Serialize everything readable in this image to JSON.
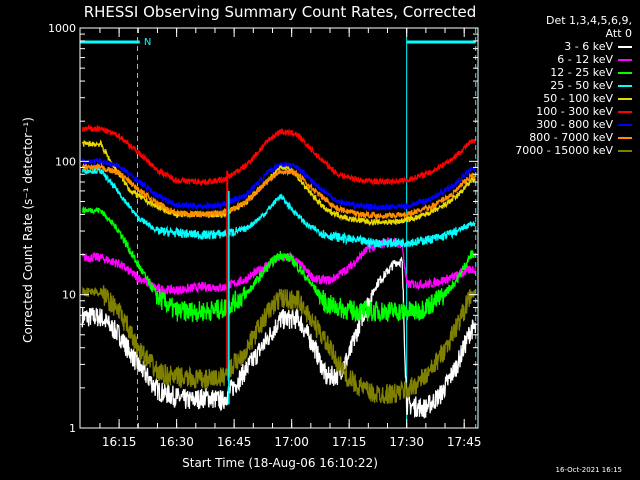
{
  "chart_data": {
    "type": "line",
    "title": "RHESSI Observing Summary Count Rates, Corrected",
    "xlabel": "Start Time (18-Aug-06 16:10:22)",
    "ylabel": "Corrected Count Rate (s⁻¹ detector⁻¹)",
    "yscale": "log",
    "ylim": [
      1,
      1000
    ],
    "xlim_minutes": [
      16.08,
      17.81
    ],
    "x_ticks": [
      "16:15",
      "16:30",
      "16:45",
      "17:00",
      "17:15",
      "17:30",
      "17:45"
    ],
    "y_ticks": [
      "1",
      "10",
      "100",
      "1000"
    ],
    "legend": {
      "header": [
        "Det 1,3,4,5,6,9,",
        "Att 0"
      ],
      "placement": "right"
    },
    "markers": {
      "n_label": "N"
    },
    "series": [
      {
        "name": "3 - 6 keV",
        "color": "#ffffff",
        "points": [
          [
            16.17,
            6.8
          ],
          [
            16.25,
            5.0
          ],
          [
            16.33,
            3.0
          ],
          [
            16.42,
            1.9
          ],
          [
            16.5,
            1.7
          ],
          [
            16.55,
            1.6
          ],
          [
            16.63,
            1.7
          ],
          [
            16.7,
            1.6
          ],
          [
            16.8,
            2.7
          ],
          [
            16.9,
            4.8
          ],
          [
            16.95,
            6.5
          ],
          [
            17.03,
            6.6
          ],
          [
            17.1,
            4.0
          ],
          [
            17.15,
            2.4
          ],
          [
            17.2,
            2.5
          ],
          [
            17.25,
            3.5
          ],
          [
            17.3,
            6.5
          ],
          [
            17.37,
            12
          ],
          [
            17.45,
            17.5
          ],
          [
            17.48,
            17.8
          ],
          [
            17.5,
            1.5
          ],
          [
            17.58,
            1.4
          ],
          [
            17.65,
            1.8
          ],
          [
            17.72,
            3.0
          ],
          [
            17.78,
            5.5
          ]
        ]
      },
      {
        "name": "6 - 12 keV",
        "color": "#ff00ff",
        "points": [
          [
            16.17,
            19
          ],
          [
            16.25,
            17
          ],
          [
            16.33,
            13.5
          ],
          [
            16.42,
            11
          ],
          [
            16.5,
            10.8
          ],
          [
            16.62,
            11.5
          ],
          [
            16.7,
            11.3
          ],
          [
            16.8,
            13
          ],
          [
            16.9,
            17
          ],
          [
            16.95,
            19
          ],
          [
            17.0,
            19
          ],
          [
            17.05,
            16
          ],
          [
            17.1,
            13
          ],
          [
            17.17,
            12.8
          ],
          [
            17.25,
            16
          ],
          [
            17.33,
            22
          ],
          [
            17.42,
            25
          ],
          [
            17.48,
            24
          ],
          [
            17.5,
            12
          ],
          [
            17.6,
            12
          ],
          [
            17.7,
            13.5
          ],
          [
            17.78,
            15.5
          ]
        ]
      },
      {
        "name": "12 - 25 keV",
        "color": "#00ff00",
        "points": [
          [
            16.17,
            43
          ],
          [
            16.25,
            30
          ],
          [
            16.33,
            17
          ],
          [
            16.42,
            9.5
          ],
          [
            16.5,
            7.5
          ],
          [
            16.62,
            7.5
          ],
          [
            16.7,
            7.8
          ],
          [
            16.8,
            10
          ],
          [
            16.9,
            16.5
          ],
          [
            16.95,
            20
          ],
          [
            17.0,
            18.5
          ],
          [
            17.07,
            13
          ],
          [
            17.15,
            8.5
          ],
          [
            17.25,
            7.6
          ],
          [
            17.35,
            7.5
          ],
          [
            17.45,
            7.5
          ],
          [
            17.55,
            7.5
          ],
          [
            17.65,
            9.5
          ],
          [
            17.72,
            13
          ],
          [
            17.78,
            20
          ]
        ]
      },
      {
        "name": "25 - 50 keV",
        "color": "#00ffff",
        "points": [
          [
            16.17,
            85
          ],
          [
            16.25,
            58
          ],
          [
            16.33,
            38
          ],
          [
            16.42,
            30
          ],
          [
            16.5,
            29
          ],
          [
            16.62,
            28
          ],
          [
            16.7,
            28.5
          ],
          [
            16.8,
            31
          ],
          [
            16.88,
            40
          ],
          [
            16.95,
            55
          ],
          [
            17.0,
            44
          ],
          [
            17.07,
            33
          ],
          [
            17.15,
            28
          ],
          [
            17.25,
            26
          ],
          [
            17.35,
            24.5
          ],
          [
            17.45,
            24.5
          ],
          [
            17.55,
            25
          ],
          [
            17.65,
            27
          ],
          [
            17.72,
            30
          ],
          [
            17.78,
            34
          ]
        ]
      },
      {
        "name": "50 - 100 keV",
        "color": "#e8d800",
        "points": [
          [
            16.17,
            135
          ],
          [
            16.22,
            95
          ],
          [
            16.3,
            60
          ],
          [
            16.4,
            47
          ],
          [
            16.5,
            40
          ],
          [
            16.62,
            40
          ],
          [
            16.7,
            40
          ],
          [
            16.8,
            49
          ],
          [
            16.9,
            73
          ],
          [
            16.95,
            92
          ],
          [
            17.0,
            87
          ],
          [
            17.07,
            61
          ],
          [
            17.15,
            43
          ],
          [
            17.25,
            37
          ],
          [
            17.35,
            35
          ],
          [
            17.45,
            35
          ],
          [
            17.55,
            38
          ],
          [
            17.65,
            45
          ],
          [
            17.72,
            55
          ],
          [
            17.78,
            72
          ]
        ]
      },
      {
        "name": "100 - 300 keV",
        "color": "#ff0000",
        "points": [
          [
            16.17,
            175
          ],
          [
            16.25,
            155
          ],
          [
            16.33,
            118
          ],
          [
            16.42,
            85
          ],
          [
            16.5,
            72
          ],
          [
            16.62,
            70
          ],
          [
            16.7,
            72
          ],
          [
            16.8,
            92
          ],
          [
            16.9,
            145
          ],
          [
            16.95,
            168
          ],
          [
            17.02,
            160
          ],
          [
            17.1,
            115
          ],
          [
            17.2,
            80
          ],
          [
            17.3,
            72
          ],
          [
            17.4,
            70
          ],
          [
            17.5,
            72
          ],
          [
            17.6,
            82
          ],
          [
            17.7,
            105
          ],
          [
            17.78,
            140
          ]
        ]
      },
      {
        "name": "300 - 800 keV",
        "color": "#0000ff",
        "points": [
          [
            16.17,
            100
          ],
          [
            16.25,
            92
          ],
          [
            16.33,
            72
          ],
          [
            16.42,
            55
          ],
          [
            16.5,
            47
          ],
          [
            16.62,
            46
          ],
          [
            16.7,
            47
          ],
          [
            16.8,
            56
          ],
          [
            16.9,
            83
          ],
          [
            16.95,
            96
          ],
          [
            17.02,
            92
          ],
          [
            17.1,
            68
          ],
          [
            17.2,
            50
          ],
          [
            17.3,
            46
          ],
          [
            17.4,
            45
          ],
          [
            17.5,
            46
          ],
          [
            17.6,
            52
          ],
          [
            17.7,
            65
          ],
          [
            17.78,
            87
          ]
        ]
      },
      {
        "name": "800 - 7000 keV",
        "color": "#ff8c00",
        "points": [
          [
            16.17,
            90
          ],
          [
            16.25,
            82
          ],
          [
            16.33,
            62
          ],
          [
            16.42,
            48
          ],
          [
            16.5,
            41
          ],
          [
            16.62,
            40
          ],
          [
            16.7,
            41
          ],
          [
            16.8,
            49
          ],
          [
            16.9,
            73
          ],
          [
            16.95,
            85
          ],
          [
            17.02,
            82
          ],
          [
            17.1,
            60
          ],
          [
            17.2,
            44
          ],
          [
            17.3,
            40
          ],
          [
            17.4,
            39
          ],
          [
            17.5,
            40
          ],
          [
            17.6,
            45
          ],
          [
            17.7,
            57
          ],
          [
            17.78,
            78
          ]
        ]
      },
      {
        "name": "7000 - 15000 keV",
        "color": "#7f7f00",
        "points": [
          [
            16.17,
            10.5
          ],
          [
            16.25,
            7.5
          ],
          [
            16.33,
            4.0
          ],
          [
            16.42,
            2.6
          ],
          [
            16.5,
            2.4
          ],
          [
            16.62,
            2.3
          ],
          [
            16.7,
            2.4
          ],
          [
            16.8,
            3.8
          ],
          [
            16.9,
            7.5
          ],
          [
            16.95,
            9.5
          ],
          [
            17.03,
            9.0
          ],
          [
            17.1,
            6.0
          ],
          [
            17.17,
            3.8
          ],
          [
            17.25,
            2.3
          ],
          [
            17.35,
            1.8
          ],
          [
            17.45,
            1.8
          ],
          [
            17.52,
            2.0
          ],
          [
            17.6,
            2.6
          ],
          [
            17.68,
            4.3
          ],
          [
            17.74,
            7.0
          ],
          [
            17.78,
            10
          ]
        ]
      }
    ]
  },
  "timestamp": "16-Oct-2021 16:15"
}
